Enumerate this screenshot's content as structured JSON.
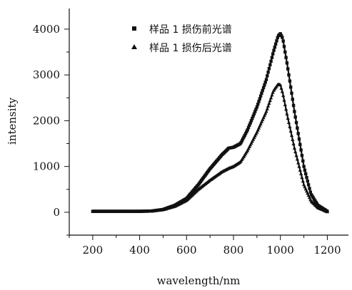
{
  "chart_data": {
    "type": "scatter",
    "xlabel": "wavelength/nm",
    "ylabel": "intensity",
    "xlim": [
      100,
      1290
    ],
    "ylim": [
      -500,
      4450
    ],
    "x_ticks": [
      200,
      400,
      600,
      800,
      1000,
      1200
    ],
    "y_ticks": [
      0,
      1000,
      2000,
      3000,
      4000
    ],
    "x_tick_labels": [
      "200",
      "400",
      "600",
      "800",
      "1000",
      "1200"
    ],
    "y_tick_labels": [
      "0",
      "1000",
      "2000",
      "3000",
      "4000"
    ],
    "grid": false,
    "legend_position": "top-center",
    "series": [
      {
        "name": "样品 1 损伤前光谱",
        "marker": "square",
        "color": "#111111",
        "x": [
          200,
          300,
          400,
          450,
          500,
          550,
          600,
          650,
          700,
          750,
          780,
          800,
          830,
          860,
          900,
          940,
          970,
          990,
          1000,
          1010,
          1030,
          1060,
          1100,
          1130,
          1160,
          1200
        ],
        "y": [
          20,
          20,
          20,
          25,
          60,
          150,
          300,
          600,
          950,
          1250,
          1400,
          1420,
          1500,
          1800,
          2300,
          2900,
          3500,
          3850,
          3900,
          3800,
          3200,
          2200,
          1000,
          400,
          150,
          20
        ]
      },
      {
        "name": "样品 1 损伤后光谱",
        "marker": "triangle",
        "color": "#111111",
        "x": [
          200,
          300,
          400,
          450,
          500,
          550,
          600,
          650,
          700,
          750,
          780,
          800,
          830,
          860,
          900,
          940,
          970,
          990,
          1000,
          1010,
          1030,
          1060,
          1100,
          1130,
          1160,
          1200
        ],
        "y": [
          20,
          20,
          20,
          25,
          55,
          130,
          260,
          500,
          700,
          880,
          960,
          1000,
          1100,
          1350,
          1750,
          2200,
          2650,
          2800,
          2780,
          2600,
          2100,
          1400,
          600,
          250,
          100,
          10
        ]
      }
    ]
  }
}
